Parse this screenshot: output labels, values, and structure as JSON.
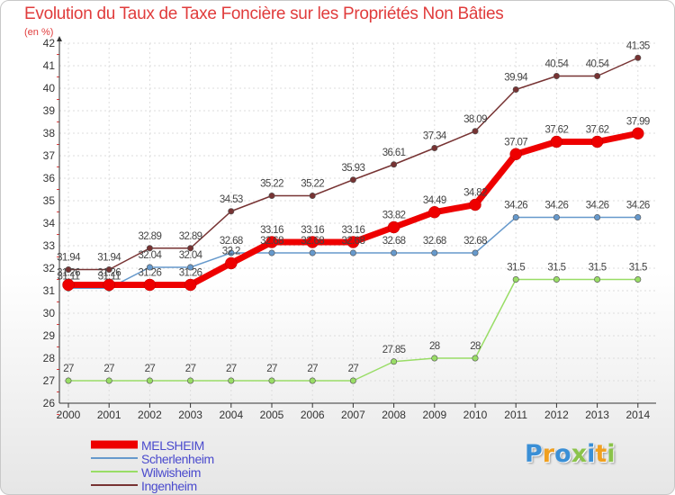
{
  "header": {
    "title": "Evolution du Taux de Taxe Foncière sur les Propriétés Non Bâties",
    "unit": "(en %)"
  },
  "chart_data": {
    "type": "line",
    "title": "Evolution du Taux de Taxe Foncière sur les Propriétés Non Bâties",
    "ylabel": "(en %)",
    "xlabel": "",
    "ylim": [
      26,
      42
    ],
    "yticks": [
      26,
      27,
      28,
      29,
      30,
      31,
      32,
      33,
      34,
      35,
      36,
      37,
      38,
      39,
      40,
      41,
      42
    ],
    "x": [
      "2000",
      "2001",
      "2002",
      "2003",
      "2004",
      "2005",
      "2006",
      "2007",
      "2008",
      "2009",
      "2010",
      "2011",
      "2012",
      "2013",
      "2014"
    ],
    "grid": true,
    "legend_position": "bottom-left",
    "series": [
      {
        "name": "MELSHEIM",
        "color": "#ee0000",
        "values": [
          31.26,
          31.26,
          31.26,
          31.26,
          32.22,
          33.16,
          33.16,
          33.16,
          33.82,
          34.49,
          34.82,
          37.07,
          37.62,
          37.62,
          37.99
        ],
        "labels": [
          "31.26",
          "31.26",
          "31.26",
          "31.26",
          "32.2",
          "33.16",
          "33.16",
          "33.16",
          "33.82",
          "34.49",
          "34.82",
          "37.07",
          "37.62",
          "37.62",
          "37.99"
        ]
      },
      {
        "name": "Scherlenheim",
        "color": "#6699cc",
        "values": [
          31.11,
          31.11,
          32.04,
          32.04,
          32.68,
          32.68,
          32.68,
          32.68,
          32.68,
          32.68,
          32.68,
          34.26,
          34.26,
          34.26,
          34.26
        ],
        "labels": [
          "31.11",
          "31.11",
          "32.04",
          "32.04",
          "32.68",
          "32.68",
          "32.68",
          "32.68",
          "32.68",
          "32.68",
          "32.68",
          "34.26",
          "34.26",
          "34.26",
          "34.26"
        ]
      },
      {
        "name": "Wilwisheim",
        "color": "#99dd66",
        "values": [
          27,
          27,
          27,
          27,
          27,
          27,
          27,
          27,
          27.85,
          28,
          28,
          31.5,
          31.5,
          31.5,
          31.5
        ],
        "labels": [
          "27",
          "27",
          "27",
          "27",
          "27",
          "27",
          "27",
          "27",
          "27.85",
          "28",
          "28",
          "31.5",
          "31.5",
          "31.5",
          "31.5"
        ]
      },
      {
        "name": "Ingenheim",
        "color": "#773333",
        "values": [
          31.94,
          31.94,
          32.89,
          32.89,
          34.53,
          35.22,
          35.22,
          35.93,
          36.61,
          37.34,
          38.09,
          39.94,
          40.54,
          40.54,
          41.35
        ],
        "labels": [
          "31.94",
          "31.94",
          "32.89",
          "32.89",
          "34.53",
          "35.22",
          "35.22",
          "35.93",
          "36.61",
          "37.34",
          "38.09",
          "39.94",
          "40.54",
          "40.54",
          "41.35"
        ]
      }
    ]
  },
  "legend": {
    "items": [
      {
        "label": "MELSHEIM",
        "color": "#ee0000"
      },
      {
        "label": "Scherlenheim",
        "color": "#6699cc"
      },
      {
        "label": "Wilwisheim",
        "color": "#99dd66"
      },
      {
        "label": "Ingenheim",
        "color": "#773333"
      }
    ]
  },
  "logo": {
    "text": "Proxiti",
    "letter_colors": [
      "#3a8fd6",
      "#f0a020",
      "#3a8fd6",
      "#8bc34a",
      "#3a8fd6",
      "#f0a020",
      "#8bc34a"
    ]
  }
}
